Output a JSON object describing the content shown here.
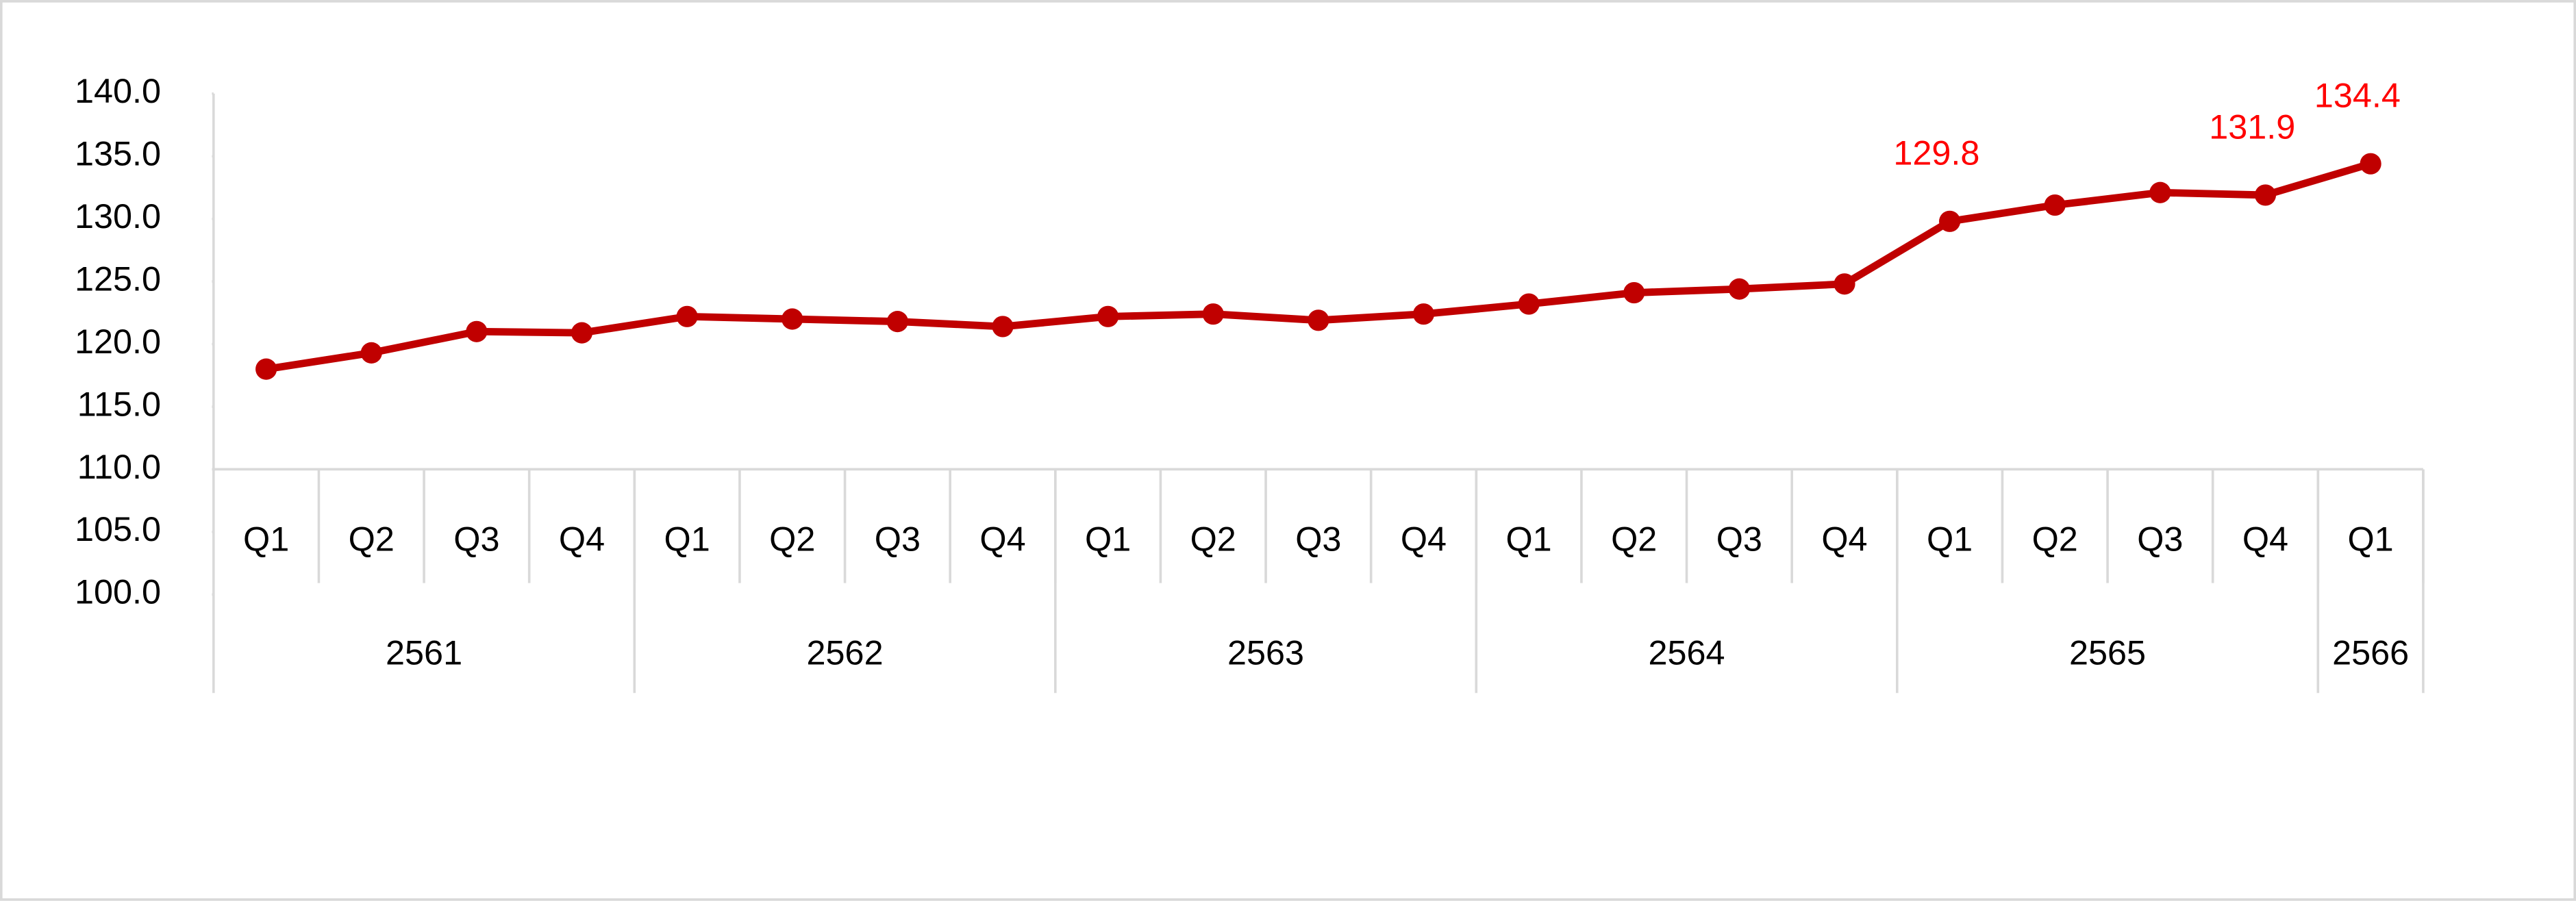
{
  "chart_data": {
    "type": "line",
    "categories": [
      "Q1",
      "Q2",
      "Q3",
      "Q4",
      "Q1",
      "Q2",
      "Q3",
      "Q4",
      "Q1",
      "Q2",
      "Q3",
      "Q4",
      "Q1",
      "Q2",
      "Q3",
      "Q4",
      "Q1",
      "Q2",
      "Q3",
      "Q4",
      "Q1"
    ],
    "groups": [
      {
        "label": "2561",
        "count": 4
      },
      {
        "label": "2562",
        "count": 4
      },
      {
        "label": "2563",
        "count": 4
      },
      {
        "label": "2564",
        "count": 4
      },
      {
        "label": "2565",
        "count": 4
      },
      {
        "label": "2566",
        "count": 1
      }
    ],
    "series": [
      {
        "color": "#c00000",
        "values": [
          118.0,
          119.3,
          121.0,
          120.9,
          122.2,
          122.0,
          121.8,
          121.4,
          122.2,
          122.4,
          121.9,
          122.4,
          123.2,
          124.1,
          124.4,
          124.8,
          129.8,
          131.1,
          132.1,
          131.9,
          134.4
        ],
        "value_labels": [
          null,
          null,
          null,
          null,
          null,
          null,
          null,
          null,
          null,
          null,
          null,
          null,
          null,
          null,
          null,
          null,
          "129.8",
          null,
          null,
          "131.9",
          "134.4"
        ],
        "label_color": "#ff0000"
      }
    ],
    "ylim": [
      100,
      140
    ],
    "yticks": [
      {
        "value": 100,
        "label": "100.0"
      },
      {
        "value": 105,
        "label": "105.0"
      },
      {
        "value": 110,
        "label": "110.0"
      },
      {
        "value": 115,
        "label": "115.0"
      },
      {
        "value": 120,
        "label": "120.0"
      },
      {
        "value": 125,
        "label": "125.0"
      },
      {
        "value": 130,
        "label": "130.0"
      },
      {
        "value": 135,
        "label": "135.0"
      },
      {
        "value": 140,
        "label": "140.0"
      }
    ],
    "x_axis_crosses_at": 110,
    "grid": false
  }
}
